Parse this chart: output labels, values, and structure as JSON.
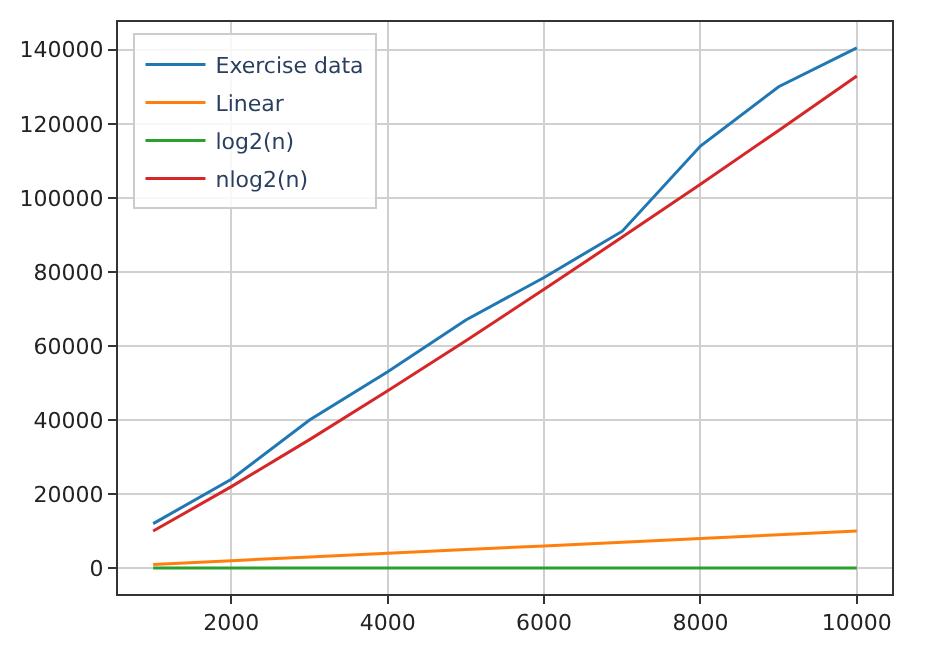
{
  "chart_data": {
    "type": "line",
    "x": [
      1000,
      2000,
      3000,
      4000,
      5000,
      6000,
      7000,
      8000,
      9000,
      10000
    ],
    "series": [
      {
        "name": "Exercise data",
        "color": "#1f77b4",
        "values": [
          12000,
          24000,
          40000,
          53000,
          67000,
          78500,
          91000,
          114000,
          130000,
          140500
        ]
      },
      {
        "name": "Linear",
        "color": "#ff7f0e",
        "values": [
          1000,
          2000,
          3000,
          4000,
          5000,
          6000,
          7000,
          8000,
          9000,
          10000
        ]
      },
      {
        "name": "log2(n)",
        "color": "#2ca02c",
        "values": [
          0,
          0,
          0,
          0,
          0,
          0,
          0,
          0,
          0,
          0
        ]
      },
      {
        "name": "nlog2(n)",
        "color": "#d62728",
        "values": [
          10000,
          22000,
          34700,
          47900,
          61400,
          75300,
          89400,
          103700,
          118200,
          132900
        ]
      }
    ],
    "xlim": [
      550,
      10450
    ],
    "xticks": [
      2000,
      4000,
      6000,
      8000,
      10000
    ],
    "ylim": [
      -7000,
      147500
    ],
    "yticks": [
      0,
      20000,
      40000,
      60000,
      80000,
      100000,
      120000,
      140000
    ],
    "grid": true,
    "legend": "top left",
    "line_style": "solid",
    "marker": "none"
  }
}
